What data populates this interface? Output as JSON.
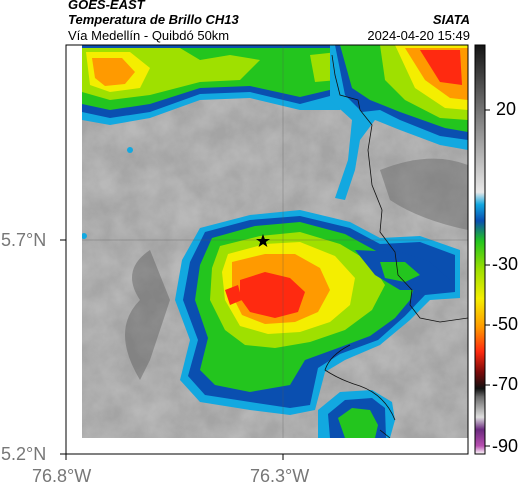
{
  "header": {
    "satellite": "GOES-EAST",
    "product": "Temperatura de Brillo CH13",
    "subtitle": "Vía Medellín - Quibdó 50km",
    "agency": "SIATA",
    "timestamp": "2024-04-20 15:49"
  },
  "map": {
    "lat_labels": [
      "5.7°N",
      "5.2°N"
    ],
    "lon_labels": [
      "76.8°W",
      "76.3°W"
    ],
    "marker": "star-icon"
  },
  "colorbar": {
    "tick_labels": [
      "20",
      "-30",
      "-50",
      "-70",
      "-90"
    ]
  },
  "colors": {
    "warm_gray": "#a0a0a0",
    "cold_red": "#e8301e",
    "cold_yellow": "#f2e200",
    "cold_green": "#2ed42a",
    "edge_blue": "#0a3f9e",
    "edge_cyan": "#1ab0dc"
  }
}
